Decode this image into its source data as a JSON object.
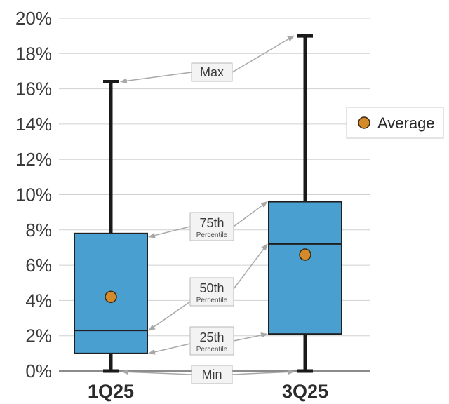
{
  "chart_data": {
    "type": "boxplot",
    "title": "",
    "xlabel": "",
    "ylabel": "",
    "ylim": [
      0,
      20
    ],
    "y_ticks": [
      "0%",
      "2%",
      "4%",
      "6%",
      "8%",
      "10%",
      "12%",
      "14%",
      "16%",
      "18%",
      "20%"
    ],
    "y_tick_values": [
      0,
      2,
      4,
      6,
      8,
      10,
      12,
      14,
      16,
      18,
      20
    ],
    "grid": true,
    "legend_position": "right",
    "legend": {
      "label": "Average"
    },
    "categories": [
      "1Q25",
      "3Q25"
    ],
    "boxes": [
      {
        "category": "1Q25",
        "min": 0,
        "q1": 1,
        "median": 2.3,
        "q3": 7.8,
        "max": 16.4,
        "average": 4.2
      },
      {
        "category": "3Q25",
        "min": 0,
        "q1": 2.1,
        "median": 7.2,
        "q3": 9.6,
        "max": 19,
        "average": 6.6
      }
    ],
    "annotations": {
      "max": {
        "label": "Max",
        "sub": ""
      },
      "p75": {
        "label": "75th",
        "sub": "Percentile"
      },
      "p50": {
        "label": "50th",
        "sub": "Percentile"
      },
      "p25": {
        "label": "25th",
        "sub": "Percentile"
      },
      "min": {
        "label": "Min",
        "sub": ""
      }
    },
    "colors": {
      "box_fill": "#4a9fd1",
      "box_stroke": "#1f1f1f",
      "whisker": "#1a1a1a",
      "average_dot": "#d4892a",
      "grid": "#d0d0d0",
      "annotation": "#a8a8a8"
    }
  }
}
